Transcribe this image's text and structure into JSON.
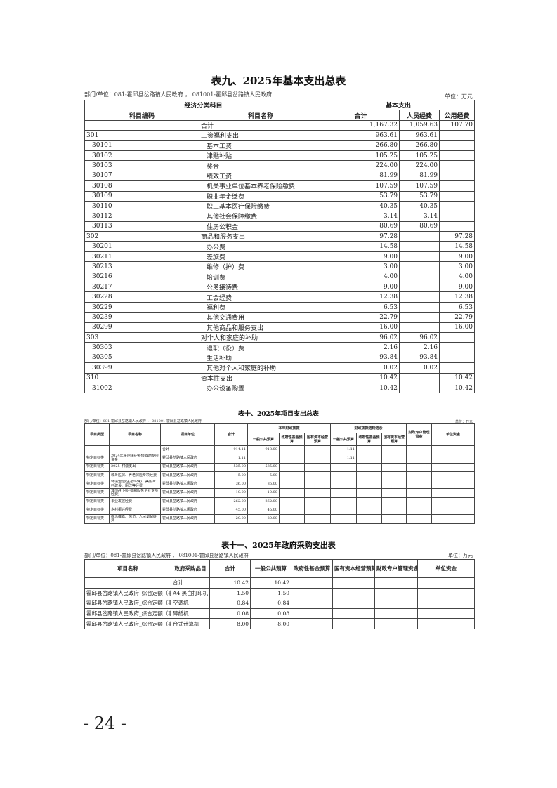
{
  "table9": {
    "title": "表九、2025年基本支出总表",
    "dept": "部门/单位：081-霍邱县岔路镇人民政府 ， 081001-霍邱县岔路镇人民政府",
    "unit": "单位：万元",
    "group_headers": [
      "经济分类科目",
      "基本支出"
    ],
    "headers": [
      "科目编码",
      "科目名称",
      "合计",
      "人员经费",
      "公用经费"
    ],
    "rows": [
      [
        "",
        "合计",
        "1,167.32",
        "1,059.63",
        "107.70"
      ],
      [
        "301",
        "工资福利支出",
        "963.61",
        "963.61",
        ""
      ],
      [
        "30101",
        "基本工资",
        "266.80",
        "266.80",
        ""
      ],
      [
        "30102",
        "津贴补贴",
        "105.25",
        "105.25",
        ""
      ],
      [
        "30103",
        "奖金",
        "224.00",
        "224.00",
        ""
      ],
      [
        "30107",
        "绩效工资",
        "81.99",
        "81.99",
        ""
      ],
      [
        "30108",
        "机关事业单位基本养老保险缴费",
        "107.59",
        "107.59",
        ""
      ],
      [
        "30109",
        "职业年金缴费",
        "53.79",
        "53.79",
        ""
      ],
      [
        "30110",
        "职工基本医疗保险缴费",
        "40.35",
        "40.35",
        ""
      ],
      [
        "30112",
        "其他社会保障缴费",
        "3.14",
        "3.14",
        ""
      ],
      [
        "30113",
        "住房公积金",
        "80.69",
        "80.69",
        ""
      ],
      [
        "302",
        "商品和服务支出",
        "97.28",
        "",
        "97.28"
      ],
      [
        "30201",
        "办公费",
        "14.58",
        "",
        "14.58"
      ],
      [
        "30211",
        "差旅费",
        "9.00",
        "",
        "9.00"
      ],
      [
        "30213",
        "维修（护）费",
        "3.00",
        "",
        "3.00"
      ],
      [
        "30216",
        "培训费",
        "4.00",
        "",
        "4.00"
      ],
      [
        "30217",
        "公务接待费",
        "9.00",
        "",
        "9.00"
      ],
      [
        "30228",
        "工会经费",
        "12.38",
        "",
        "12.38"
      ],
      [
        "30229",
        "福利费",
        "6.53",
        "",
        "6.53"
      ],
      [
        "30239",
        "其他交通费用",
        "22.79",
        "",
        "22.79"
      ],
      [
        "30299",
        "其他商品和服务支出",
        "16.00",
        "",
        "16.00"
      ],
      [
        "303",
        "对个人和家庭的补助",
        "96.02",
        "96.02",
        ""
      ],
      [
        "30303",
        "退职（役）费",
        "2.16",
        "2.16",
        ""
      ],
      [
        "30305",
        "生活补助",
        "93.84",
        "93.84",
        ""
      ],
      [
        "30399",
        "其他对个人和家庭的补助",
        "0.02",
        "0.02",
        ""
      ],
      [
        "310",
        "资本性支出",
        "10.42",
        "",
        "10.42"
      ],
      [
        "31002",
        "办公设备购置",
        "10.42",
        "",
        "10.42"
      ]
    ]
  },
  "table10": {
    "title": "表十、2025年项目支出总表",
    "dept": "部门/单位：081-霍邱县岔路镇人民政府 ， 081001-霍邱县岔路镇人民政府",
    "unit": "单位：万元",
    "headers": [
      "项目类型",
      "项目名称",
      "项目单位",
      "合计"
    ],
    "group_headers": [
      "本年财政拨款",
      "财政拨款结转结余"
    ],
    "sub_headers": [
      "一般公共预算",
      "政府性基金预算",
      "国有资本经营预算",
      "一般公共预算",
      "政府性基金预算",
      "国有资本经营预算"
    ],
    "tail_headers": [
      "财政专户管理资金",
      "单位资金"
    ],
    "rows": [
      [
        "",
        "",
        "合计",
        "914.11",
        "913.00",
        "",
        "",
        "1.11",
        "",
        "",
        "",
        ""
      ],
      [
        "特定目标类",
        "2024年耕地保护补偿激励专项资金",
        "霍邱县岔路镇人民政府",
        "1.11",
        "",
        "",
        "",
        "1.11",
        "",
        "",
        "",
        ""
      ],
      [
        "特定目标类",
        "2025_村级支出",
        "霍邱县岔路镇人民政府",
        "535.00",
        "535.00",
        "",
        "",
        "",
        "",
        "",
        "",
        ""
      ],
      [
        "特定目标类",
        "城乡医保、养老保险专项经费",
        "霍邱县岔路镇人民政府",
        "5.00",
        "5.00",
        "",
        "",
        "",
        "",
        "",
        "",
        ""
      ],
      [
        "特定目标类",
        "环境治理(生态环保)、美丽乡村建设、厕改等经费",
        "霍邱县岔路镇人民政府",
        "36.00",
        "36.00",
        "",
        "",
        "",
        "",
        "",
        "",
        ""
      ],
      [
        "特定目标类",
        "其他(社区经费和服务企业专项经费)",
        "霍邱县岔路镇人民政府",
        "10.00",
        "10.00",
        "",
        "",
        "",
        "",
        "",
        "",
        ""
      ],
      [
        "特定目标类",
        "事业发展经费",
        "霍邱县岔路镇人民政府",
        "262.00",
        "262.00",
        "",
        "",
        "",
        "",
        "",
        "",
        ""
      ],
      [
        "特定目标类",
        "乡村振兴经费",
        "霍邱县岔路镇人民政府",
        "45.00",
        "45.00",
        "",
        "",
        "",
        "",
        "",
        "",
        ""
      ],
      [
        "特定目标类",
        "综治维稳、信访、人民调解经费",
        "霍邱县岔路镇人民政府",
        "20.00",
        "20.00",
        "",
        "",
        "",
        "",
        "",
        "",
        ""
      ]
    ]
  },
  "table11": {
    "title": "表十一、2025年政府采购支出表",
    "dept": "部门/单位：081-霍邱县岔路镇人民政府 ， 081001-霍邱县岔路镇人民政府",
    "unit": "单位：万元",
    "headers": [
      "项目名称",
      "政府采购品目",
      "合计",
      "一般公共预算",
      "政府性基金预算",
      "国有资本经营预算",
      "财政专户管理资金",
      "单位资金"
    ],
    "rows": [
      [
        "",
        "合计",
        "10.42",
        "10.42",
        "",
        "",
        "",
        ""
      ],
      [
        "霍邱县岔路镇人民政府_综合定额（事业）",
        "A4 黑白打印机",
        "1.50",
        "1.50",
        "",
        "",
        "",
        ""
      ],
      [
        "霍邱县岔路镇人民政府_综合定额（事业）",
        "空调机",
        "0.84",
        "0.84",
        "",
        "",
        "",
        ""
      ],
      [
        "霍邱县岔路镇人民政府_综合定额（事业）",
        "碎纸机",
        "0.08",
        "0.08",
        "",
        "",
        "",
        ""
      ],
      [
        "霍邱县岔路镇人民政府_综合定额（事业）",
        "台式计算机",
        "8.00",
        "8.00",
        "",
        "",
        "",
        ""
      ]
    ]
  },
  "page_number": "- 24 -"
}
